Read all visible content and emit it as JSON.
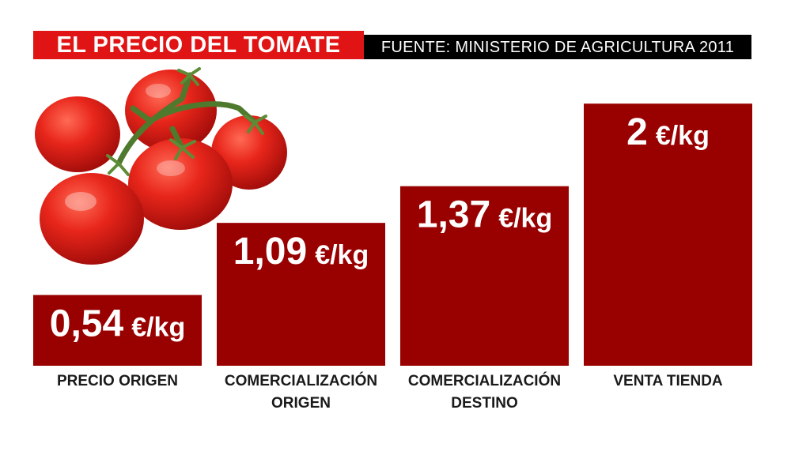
{
  "header": {
    "title": "EL PRECIO DEL TOMATE",
    "source": "FUENTE: MINISTERIO DE AGRICULTURA 2011"
  },
  "colors": {
    "bar": "#990000",
    "title_bg": "#e01414",
    "source_bg": "#000000"
  },
  "image": {
    "icon": "tomato-vine-icon"
  },
  "chart_data": {
    "type": "bar",
    "unit": "€/kg",
    "ylim": [
      0,
      2.2
    ],
    "grid": false,
    "categories": [
      [
        "PRECIO ORIGEN"
      ],
      [
        "COMERCIALIZACIÓN",
        "ORIGEN"
      ],
      [
        "COMERCIALIZACIÓN",
        "DESTINO"
      ],
      [
        "VENTA TIENDA"
      ]
    ],
    "values": [
      0.54,
      1.09,
      1.37,
      2
    ],
    "value_labels": [
      "0,54",
      "1,09",
      "1,37",
      "2"
    ]
  }
}
